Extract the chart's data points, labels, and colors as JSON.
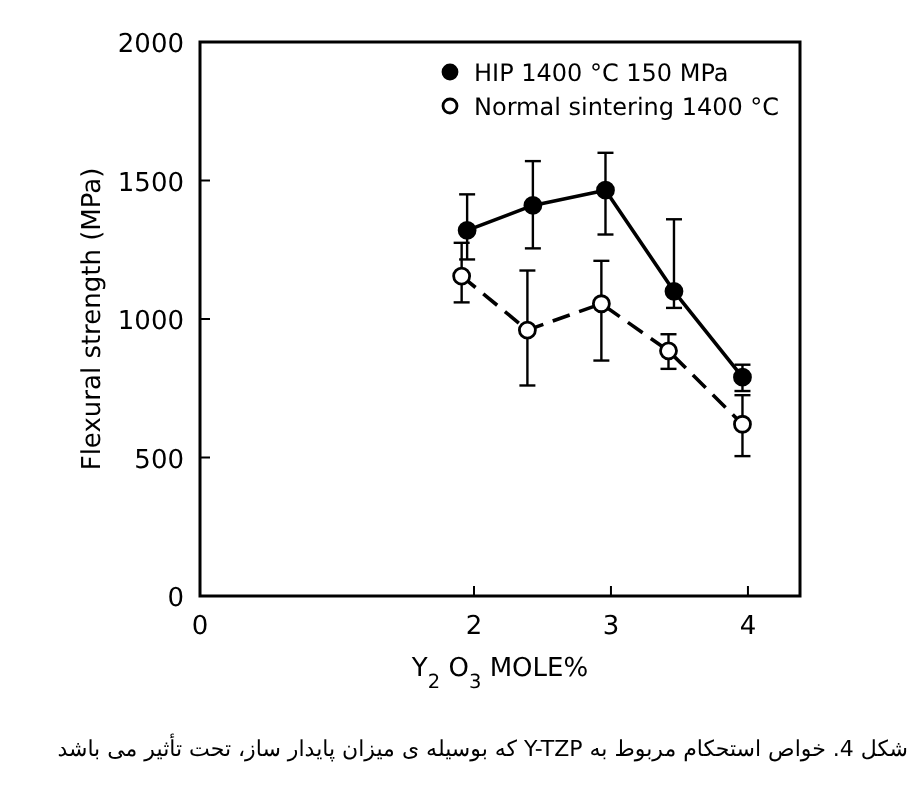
{
  "chart_data": {
    "type": "line",
    "ylabel": "Flexural strength (MPa)",
    "xlabel": "Y$_{2}$ O$_{3}$ MOLE%",
    "xlim": [
      0,
      4.38
    ],
    "xticks": [
      0,
      2,
      3,
      4
    ],
    "ylim": [
      0,
      2000
    ],
    "yticks": [
      0,
      500,
      1000,
      1500,
      2000
    ],
    "grid": false,
    "legend": "top right",
    "marker": "circle",
    "series": [
      {
        "name": "HIP 1400 °C  150 MPa",
        "color": "#000000",
        "line_style": "solid",
        "x": [
          1.95,
          2.43,
          2.96,
          3.46,
          3.96
        ],
        "values": [
          1320,
          1410,
          1465,
          1100,
          790
        ],
        "errors": [
          [
            1215,
            1450
          ],
          [
            1255,
            1570
          ],
          [
            1305,
            1600
          ],
          [
            1040,
            1360
          ],
          [
            740,
            835
          ]
        ]
      },
      {
        "name": "Normal sintering 1400 °C",
        "color": "#000000",
        "line_style": "dashed",
        "x": [
          1.91,
          2.39,
          2.93,
          3.42,
          3.96
        ],
        "values": [
          1155,
          960,
          1055,
          885,
          620
        ],
        "errors": [
          [
            1060,
            1275
          ],
          [
            760,
            1175
          ],
          [
            850,
            1210
          ],
          [
            820,
            945
          ],
          [
            505,
            725
          ]
        ]
      }
    ],
    "annotations": [
      "شکل 4. خواص استحکام مربوط به Y-TZP که بوسیله ی میزان پایدار ساز، تحت تأثیر می باشد"
    ]
  }
}
